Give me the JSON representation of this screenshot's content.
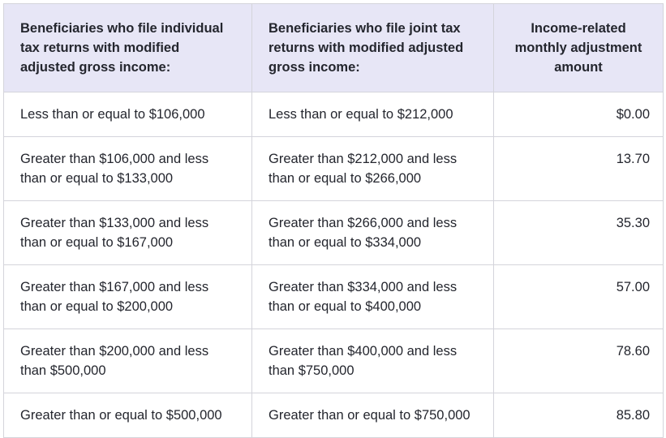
{
  "table": {
    "title": "Income-related monthly adjustment amount table",
    "colors": {
      "header_background": "#e7e6f6",
      "border": "#d4d4db",
      "text": "#24262e",
      "row_background": "#ffffff"
    },
    "columns": [
      {
        "label": "Beneficiaries who file individual tax returns with modified adjusted gross income:",
        "align": "left"
      },
      {
        "label": "Beneficiaries who file joint tax returns with modified adjusted gross income:",
        "align": "left"
      },
      {
        "label": "Income-related monthly adjustment amount",
        "align": "center"
      }
    ],
    "rows": [
      [
        "Less than or equal to $106,000",
        "Less than or equal to $212,000",
        "$0.00"
      ],
      [
        "Greater than $106,000 and less than or equal to $133,000",
        "Greater than $212,000 and less than or equal to $266,000",
        "13.70"
      ],
      [
        "Greater than $133,000 and less than or equal to $167,000",
        "Greater than $266,000 and less than or equal to $334,000",
        "35.30"
      ],
      [
        "Greater than $167,000 and less than or equal to $200,000",
        "Greater than $334,000 and less than or equal to $400,000",
        "57.00"
      ],
      [
        "Greater than $200,000 and less than $500,000",
        "Greater than $400,000 and less than $750,000",
        "78.60"
      ],
      [
        "Greater than or equal to $500,000",
        "Greater than or equal to $750,000",
        "85.80"
      ]
    ]
  },
  "chart_data": {
    "type": "table",
    "title": "Income-related monthly adjustment amount",
    "columns": [
      "Beneficiaries who file individual tax returns with modified adjusted gross income:",
      "Beneficiaries who file joint tax returns with modified adjusted gross income:",
      "Income-related monthly adjustment amount"
    ],
    "rows": [
      [
        "Less than or equal to $106,000",
        "Less than or equal to $212,000",
        "$0.00"
      ],
      [
        "Greater than $106,000 and less than or equal to $133,000",
        "Greater than $212,000 and less than or equal to $266,000",
        "13.70"
      ],
      [
        "Greater than $133,000 and less than or equal to $167,000",
        "Greater than $266,000 and less than or equal to $334,000",
        "35.30"
      ],
      [
        "Greater than $167,000 and less than or equal to $200,000",
        "Greater than $334,000 and less than or equal to $400,000",
        "57.00"
      ],
      [
        "Greater than $200,000 and less than $500,000",
        "Greater than $400,000 and less than $750,000",
        "78.60"
      ],
      [
        "Greater than or equal to $500,000",
        "Greater than or equal to $750,000",
        "85.80"
      ]
    ]
  }
}
